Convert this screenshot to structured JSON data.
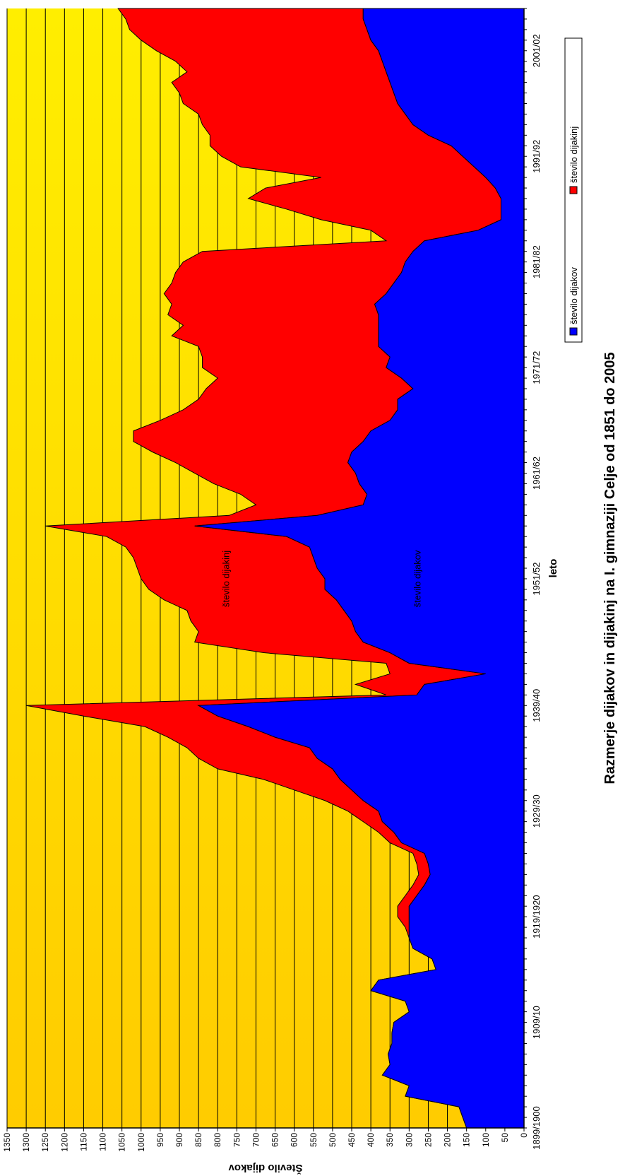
{
  "chart_data": {
    "type": "area",
    "title": "Razmerje dijakov in dijakinj na I. gimnaziji Celje od 1851 do 2005",
    "xlabel": "leto",
    "ylabel": "Število dijakov",
    "x_tick_labels": [
      "1899/1900",
      "1909/10",
      "1919/1920",
      "1929/30",
      "1939/40",
      "1951/52",
      "1961/62",
      "1971/72",
      "1981/82",
      "1991/92",
      "2001/02"
    ],
    "x_tick_years": [
      1899,
      1909,
      1919,
      1929,
      1939,
      1951,
      1961,
      1971,
      1981,
      1991,
      2001
    ],
    "x_range": [
      1899,
      2005
    ],
    "ylim": [
      0,
      1350
    ],
    "y_step": 50,
    "grid": true,
    "legend_position": "bottom",
    "annotations": [
      {
        "text": "število dijakinj",
        "x": 1951,
        "y": 770
      },
      {
        "text": "število dijakov",
        "x": 1951,
        "y": 270
      }
    ],
    "colors": {
      "dijakov": "#0000ff",
      "dijakinj": "#ff0000",
      "background_top": "#ffee00",
      "background_bottom": "#ffcc00",
      "gridline": "#000000"
    },
    "series": [
      {
        "name": "število dijakov",
        "color": "#0000ff",
        "points": [
          [
            1899,
            150
          ],
          [
            1900,
            160
          ],
          [
            1901,
            170
          ],
          [
            1902,
            310
          ],
          [
            1903,
            300
          ],
          [
            1904,
            370
          ],
          [
            1905,
            350
          ],
          [
            1906,
            355
          ],
          [
            1907,
            345
          ],
          [
            1908,
            345
          ],
          [
            1909,
            340
          ],
          [
            1910,
            300
          ],
          [
            1911,
            310
          ],
          [
            1912,
            400
          ],
          [
            1913,
            380
          ],
          [
            1914,
            230
          ],
          [
            1915,
            240
          ],
          [
            1916,
            290
          ],
          [
            1917,
            300
          ],
          [
            1918,
            300
          ],
          [
            1919,
            300
          ],
          [
            1920,
            300
          ],
          [
            1921,
            280
          ],
          [
            1922,
            260
          ],
          [
            1923,
            245
          ],
          [
            1924,
            250
          ],
          [
            1925,
            260
          ],
          [
            1926,
            320
          ],
          [
            1927,
            340
          ],
          [
            1928,
            370
          ],
          [
            1929,
            380
          ],
          [
            1930,
            420
          ],
          [
            1931,
            450
          ],
          [
            1932,
            480
          ],
          [
            1933,
            500
          ],
          [
            1934,
            540
          ],
          [
            1935,
            560
          ],
          [
            1936,
            650
          ],
          [
            1937,
            720
          ],
          [
            1938,
            800
          ],
          [
            1939,
            850
          ],
          [
            1940,
            280
          ],
          [
            1941,
            260
          ],
          [
            1942,
            100
          ],
          [
            1943,
            300
          ],
          [
            1944,
            350
          ],
          [
            1945,
            420
          ],
          [
            1946,
            440
          ],
          [
            1947,
            450
          ],
          [
            1948,
            470
          ],
          [
            1949,
            490
          ],
          [
            1950,
            520
          ],
          [
            1951,
            520
          ],
          [
            1952,
            540
          ],
          [
            1953,
            550
          ],
          [
            1954,
            560
          ],
          [
            1955,
            620
          ],
          [
            1956,
            860
          ],
          [
            1957,
            540
          ],
          [
            1958,
            420
          ],
          [
            1959,
            410
          ],
          [
            1960,
            430
          ],
          [
            1961,
            440
          ],
          [
            1962,
            460
          ],
          [
            1963,
            450
          ],
          [
            1964,
            420
          ],
          [
            1965,
            400
          ],
          [
            1966,
            350
          ],
          [
            1967,
            330
          ],
          [
            1968,
            330
          ],
          [
            1969,
            290
          ],
          [
            1970,
            320
          ],
          [
            1971,
            360
          ],
          [
            1972,
            350
          ],
          [
            1973,
            380
          ],
          [
            1974,
            380
          ],
          [
            1975,
            380
          ],
          [
            1976,
            380
          ],
          [
            1977,
            390
          ],
          [
            1978,
            360
          ],
          [
            1979,
            340
          ],
          [
            1980,
            320
          ],
          [
            1981,
            310
          ],
          [
            1982,
            290
          ],
          [
            1983,
            260
          ],
          [
            1984,
            120
          ],
          [
            1985,
            60
          ],
          [
            1986,
            60
          ],
          [
            1987,
            60
          ],
          [
            1988,
            75
          ],
          [
            1989,
            100
          ],
          [
            1990,
            130
          ],
          [
            1991,
            160
          ],
          [
            1992,
            190
          ],
          [
            1993,
            250
          ],
          [
            1994,
            290
          ],
          [
            1995,
            310
          ],
          [
            1996,
            330
          ],
          [
            1997,
            340
          ],
          [
            1998,
            350
          ],
          [
            1999,
            360
          ],
          [
            2000,
            370
          ],
          [
            2001,
            380
          ],
          [
            2002,
            400
          ],
          [
            2003,
            410
          ],
          [
            2004,
            420
          ],
          [
            2005,
            420
          ]
        ]
      },
      {
        "name": "število dijakinj",
        "color": "#ff0000",
        "points": [
          [
            1899,
            0
          ],
          [
            1900,
            0
          ],
          [
            1901,
            0
          ],
          [
            1902,
            0
          ],
          [
            1903,
            0
          ],
          [
            1904,
            0
          ],
          [
            1905,
            0
          ],
          [
            1906,
            0
          ],
          [
            1907,
            0
          ],
          [
            1908,
            0
          ],
          [
            1909,
            0
          ],
          [
            1910,
            0
          ],
          [
            1911,
            0
          ],
          [
            1912,
            0
          ],
          [
            1913,
            0
          ],
          [
            1914,
            0
          ],
          [
            1915,
            0
          ],
          [
            1916,
            0
          ],
          [
            1917,
            0
          ],
          [
            1918,
            10
          ],
          [
            1919,
            30
          ],
          [
            1920,
            30
          ],
          [
            1921,
            30
          ],
          [
            1922,
            30
          ],
          [
            1923,
            30
          ],
          [
            1924,
            30
          ],
          [
            1925,
            30
          ],
          [
            1926,
            30
          ],
          [
            1927,
            40
          ],
          [
            1928,
            50
          ],
          [
            1929,
            80
          ],
          [
            1930,
            100
          ],
          [
            1931,
            150
          ],
          [
            1932,
            200
          ],
          [
            1933,
            300
          ],
          [
            1934,
            310
          ],
          [
            1935,
            320
          ],
          [
            1936,
            280
          ],
          [
            1937,
            270
          ],
          [
            1938,
            350
          ],
          [
            1939,
            450
          ],
          [
            1940,
            80
          ],
          [
            1941,
            180
          ],
          [
            1942,
            250
          ],
          [
            1943,
            60
          ],
          [
            1944,
            330
          ],
          [
            1945,
            440
          ],
          [
            1946,
            410
          ],
          [
            1947,
            420
          ],
          [
            1948,
            410
          ],
          [
            1949,
            450
          ],
          [
            1950,
            460
          ],
          [
            1951,
            480
          ],
          [
            1952,
            470
          ],
          [
            1953,
            470
          ],
          [
            1954,
            480
          ],
          [
            1955,
            470
          ],
          [
            1956,
            390
          ],
          [
            1957,
            230
          ],
          [
            1958,
            280
          ],
          [
            1959,
            330
          ],
          [
            1960,
            380
          ],
          [
            1961,
            420
          ],
          [
            1962,
            450
          ],
          [
            1963,
            520
          ],
          [
            1964,
            600
          ],
          [
            1965,
            620
          ],
          [
            1966,
            600
          ],
          [
            1967,
            560
          ],
          [
            1968,
            520
          ],
          [
            1969,
            540
          ],
          [
            1970,
            480
          ],
          [
            1971,
            480
          ],
          [
            1972,
            490
          ],
          [
            1973,
            470
          ],
          [
            1974,
            540
          ],
          [
            1975,
            510
          ],
          [
            1976,
            550
          ],
          [
            1977,
            530
          ],
          [
            1978,
            580
          ],
          [
            1979,
            580
          ],
          [
            1980,
            590
          ],
          [
            1981,
            580
          ],
          [
            1982,
            550
          ],
          [
            1983,
            100
          ],
          [
            1984,
            280
          ],
          [
            1985,
            470
          ],
          [
            1986,
            560
          ],
          [
            1987,
            660
          ],
          [
            1988,
            600
          ],
          [
            1989,
            430
          ],
          [
            1990,
            610
          ],
          [
            1991,
            630
          ],
          [
            1992,
            630
          ],
          [
            1993,
            570
          ],
          [
            1994,
            550
          ],
          [
            1995,
            540
          ],
          [
            1996,
            560
          ],
          [
            1997,
            560
          ],
          [
            1998,
            570
          ],
          [
            1999,
            520
          ],
          [
            2000,
            540
          ],
          [
            2001,
            580
          ],
          [
            2002,
            600
          ],
          [
            2003,
            620
          ],
          [
            2004,
            620
          ],
          [
            2005,
            640
          ]
        ]
      }
    ]
  }
}
